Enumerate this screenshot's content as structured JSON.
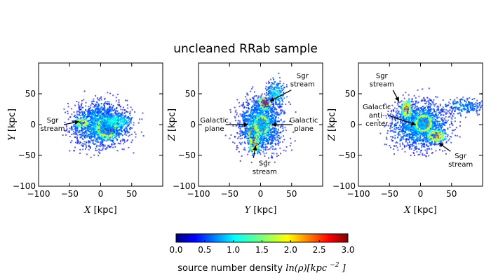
{
  "chart_data": {
    "type": "heatmap",
    "title": "uncleaned RRab sample",
    "units": "kpc",
    "panels": [
      {
        "id": "xy",
        "xlabel_var": "X",
        "ylabel_var": "Y",
        "xlim": [
          -100,
          100
        ],
        "ylim": [
          -100,
          100
        ],
        "xticks": [
          -100,
          -50,
          0,
          50
        ],
        "yticks": [
          -100,
          -50,
          0,
          50
        ],
        "annotations": [
          {
            "lines": [
              "Sgr",
              "stream"
            ],
            "x": -100,
            "y": 0,
            "point_to": [
              -35,
              5
            ]
          }
        ]
      },
      {
        "id": "yz",
        "xlabel_var": "Y",
        "ylabel_var": "Z",
        "xlim": [
          -100,
          100
        ],
        "ylim": [
          -100,
          100
        ],
        "xticks": [
          -100,
          -50,
          0,
          50
        ],
        "yticks": [
          -100,
          -50,
          0,
          50
        ],
        "annotations": [
          {
            "lines": [
              "Sgr",
              "stream"
            ],
            "x": 45,
            "y": 72,
            "point_to": [
              15,
              38
            ]
          },
          {
            "lines": [
              "Galactic",
              "plane"
            ],
            "x": -97,
            "y": 0,
            "point_to": [
              -20,
              0
            ]
          },
          {
            "lines": [
              "Galactic",
              "plane"
            ],
            "x": 47,
            "y": 0,
            "point_to": [
              18,
              0
            ]
          },
          {
            "lines": [
              "Sgr",
              "stream"
            ],
            "x": -16,
            "y": -70,
            "point_to": [
              -8,
              -35
            ]
          }
        ]
      },
      {
        "id": "xz",
        "xlabel_var": "X",
        "ylabel_var": "Z",
        "xlim": [
          -100,
          100
        ],
        "ylim": [
          -100,
          100
        ],
        "xticks": [
          -100,
          -50,
          0,
          50
        ],
        "yticks": [
          -100,
          -50,
          0,
          50
        ],
        "annotations": [
          {
            "lines": [
              "Sgr",
              "stream"
            ],
            "x": -85,
            "y": 72,
            "point_to": [
              -35,
              38
            ]
          },
          {
            "lines": [
              "Galactic",
              "anti-",
              "center"
            ],
            "x": -93,
            "y": 15,
            "point_to": [
              -8,
              0
            ]
          },
          {
            "lines": [
              "Sgr",
              "stream"
            ],
            "x": 42,
            "y": -58,
            "point_to": [
              30,
              -30
            ]
          }
        ]
      }
    ],
    "colorbar": {
      "label_text": "source number density",
      "label_math": "ln(ρ)[kpc",
      "label_exp": "−2",
      "label_close": "]",
      "vmin": 0.0,
      "vmax": 3.0,
      "ticks": [
        "0.0",
        "0.5",
        "1.0",
        "1.5",
        "2.0",
        "2.5",
        "3.0"
      ],
      "colormap": "jet"
    }
  }
}
